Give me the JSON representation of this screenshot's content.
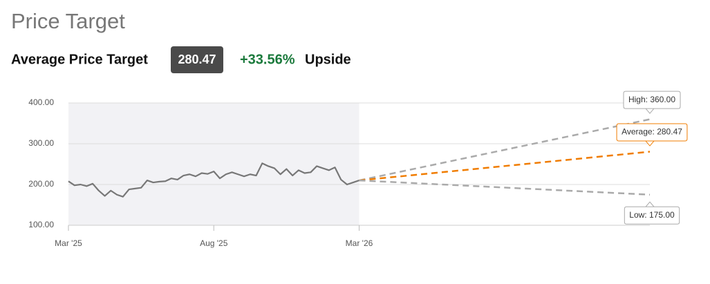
{
  "header": {
    "title": "Price Target",
    "label": "Average Price Target",
    "badge": "280.47",
    "change": "+33.56%",
    "change_suffix": "Upside"
  },
  "chart_data": {
    "type": "line",
    "xlim": [
      0,
      24
    ],
    "xticks": [
      {
        "value": 0,
        "label": "Mar '25"
      },
      {
        "value": 6,
        "label": "Aug '25"
      },
      {
        "value": 12,
        "label": "Mar '26"
      }
    ],
    "ylim": [
      100,
      400
    ],
    "yticks": [
      {
        "value": 100,
        "label": "100.00"
      },
      {
        "value": 200,
        "label": "200.00"
      },
      {
        "value": 300,
        "label": "300.00"
      },
      {
        "value": 400,
        "label": "400.00"
      }
    ],
    "grid": true,
    "series": [
      {
        "name": "Price",
        "color": "#777777",
        "x": [
          0,
          0.25,
          0.5,
          0.75,
          1,
          1.25,
          1.5,
          1.75,
          2,
          2.25,
          2.5,
          2.75,
          3,
          3.25,
          3.5,
          3.75,
          4,
          4.25,
          4.5,
          4.75,
          5,
          5.25,
          5.5,
          5.75,
          6,
          6.25,
          6.5,
          6.75,
          7,
          7.25,
          7.5,
          7.75,
          8,
          8.25,
          8.5,
          8.75,
          9,
          9.25,
          9.5,
          9.75,
          10,
          10.25,
          10.5,
          10.75,
          11,
          11.25,
          11.5,
          11.75,
          12
        ],
        "values": [
          208,
          198,
          200,
          196,
          202,
          185,
          172,
          185,
          175,
          170,
          188,
          190,
          192,
          210,
          205,
          207,
          208,
          215,
          212,
          222,
          225,
          220,
          228,
          226,
          232,
          215,
          225,
          230,
          225,
          220,
          225,
          222,
          252,
          245,
          240,
          225,
          238,
          222,
          235,
          228,
          230,
          245,
          240,
          235,
          242,
          212,
          200,
          205,
          210
        ]
      },
      {
        "name": "High",
        "color": "#aaaaaa",
        "dash": true,
        "callout": "above",
        "x": [
          12,
          24
        ],
        "values": [
          210,
          360
        ],
        "value_labels": [
          null,
          "High: 360.00"
        ]
      },
      {
        "name": "Average",
        "color": "#f07c00",
        "dash": true,
        "callout": "above",
        "x": [
          12,
          24
        ],
        "values": [
          210,
          280.47
        ],
        "value_labels": [
          null,
          "Average: 280.47"
        ]
      },
      {
        "name": "Low",
        "color": "#aaaaaa",
        "dash": true,
        "callout": "below",
        "x": [
          12,
          24
        ],
        "values": [
          210,
          175
        ],
        "value_labels": [
          null,
          "Low: 175.00"
        ]
      }
    ]
  }
}
